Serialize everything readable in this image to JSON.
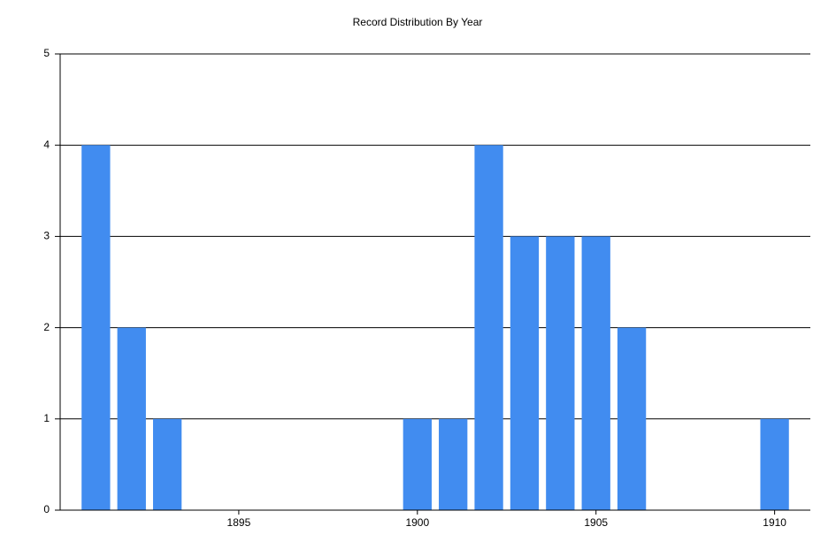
{
  "chart_data": {
    "type": "bar",
    "title": "Record Distribution By Year",
    "x": [
      1891,
      1892,
      1893,
      1900,
      1901,
      1902,
      1903,
      1904,
      1905,
      1906,
      1910
    ],
    "values": [
      4,
      2,
      1,
      1,
      1,
      4,
      3,
      3,
      3,
      2,
      1
    ],
    "color": "#418cf0",
    "xlim": [
      1890,
      1911
    ],
    "xticks": [
      1895,
      1900,
      1905,
      1910
    ],
    "ylim": [
      0,
      5
    ],
    "yticks": [
      0,
      1,
      2,
      3,
      4,
      5
    ],
    "grid": true
  }
}
